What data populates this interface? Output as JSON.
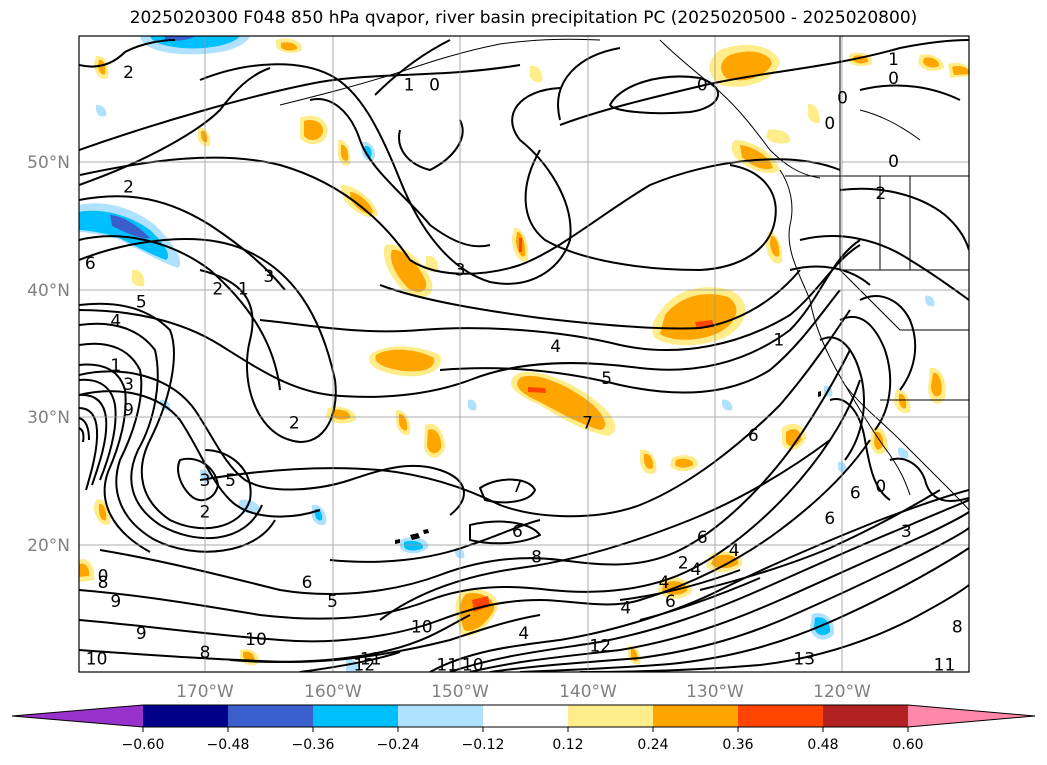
{
  "title": "2025020300 F048 850 hPa qvapor, river basin precipitation PC (2025020500 - 2025020800)",
  "lat_labels": [
    "50°N",
    "40°N",
    "30°N",
    "20°N"
  ],
  "lon_labels": [
    "170°W",
    "160°W",
    "150°W",
    "140°W",
    "130°W",
    "120°W"
  ],
  "colorbar": {
    "colors": [
      "#9932CC",
      "#00008B",
      "#3A5FCD",
      "#00BFFF",
      "#B0E2FF",
      "#FFFFFF",
      "#FFEC8B",
      "#FFA500",
      "#FF4500",
      "#B22222",
      "#FF88AA"
    ],
    "tick_labels": [
      "−0.60",
      "−0.48",
      "−0.36",
      "−0.24",
      "−0.12",
      "0.12",
      "0.24",
      "0.36",
      "0.48",
      "0.60"
    ]
  },
  "contour_labels": [
    {
      "text": "2",
      "lon": -176,
      "lat": 57
    },
    {
      "text": "1",
      "lon": -154,
      "lat": 56
    },
    {
      "text": "0",
      "lon": -152,
      "lat": 56
    },
    {
      "text": "1",
      "lon": -116,
      "lat": 58
    },
    {
      "text": "0",
      "lon": -116,
      "lat": 56.5
    },
    {
      "text": "0",
      "lon": -131,
      "lat": 56
    },
    {
      "text": "0",
      "lon": -120,
      "lat": 55
    },
    {
      "text": "0",
      "lon": -121,
      "lat": 53
    },
    {
      "text": "0",
      "lon": -116,
      "lat": 50
    },
    {
      "text": "2",
      "lon": -117,
      "lat": 47.5
    },
    {
      "text": "2",
      "lon": -176,
      "lat": 48
    },
    {
      "text": "3",
      "lon": -165,
      "lat": 41
    },
    {
      "text": "1",
      "lon": -167,
      "lat": 40
    },
    {
      "text": "2",
      "lon": -169,
      "lat": 40
    },
    {
      "text": "3",
      "lon": -150,
      "lat": 41.5
    },
    {
      "text": "6",
      "lon": -179,
      "lat": 42
    },
    {
      "text": "5",
      "lon": -175,
      "lat": 39
    },
    {
      "text": "4",
      "lon": -177,
      "lat": 37.5
    },
    {
      "text": "4",
      "lon": -142.5,
      "lat": 35.5
    },
    {
      "text": "5",
      "lon": -138.5,
      "lat": 33
    },
    {
      "text": "7",
      "lon": -140,
      "lat": 29.5
    },
    {
      "text": "1",
      "lon": -125,
      "lat": 36
    },
    {
      "text": "1",
      "lon": -177,
      "lat": 34
    },
    {
      "text": "3",
      "lon": -176,
      "lat": 32.5
    },
    {
      "text": "9",
      "lon": -176,
      "lat": 30.5
    },
    {
      "text": "2",
      "lon": -163,
      "lat": 29.5
    },
    {
      "text": "6",
      "lon": -127,
      "lat": 28.5
    },
    {
      "text": "5",
      "lon": -168,
      "lat": 25
    },
    {
      "text": "3",
      "lon": -170,
      "lat": 25
    },
    {
      "text": "2",
      "lon": -170,
      "lat": 22.5
    },
    {
      "text": "7",
      "lon": -145.5,
      "lat": 24.5
    },
    {
      "text": "6",
      "lon": -145.5,
      "lat": 21
    },
    {
      "text": "6",
      "lon": -121,
      "lat": 22
    },
    {
      "text": "6",
      "lon": -119,
      "lat": 24
    },
    {
      "text": "0",
      "lon": -117,
      "lat": 24.5
    },
    {
      "text": "3",
      "lon": -115,
      "lat": 21
    },
    {
      "text": "6",
      "lon": -131,
      "lat": 20.5
    },
    {
      "text": "8",
      "lon": -144,
      "lat": 19
    },
    {
      "text": "4",
      "lon": -128.5,
      "lat": 19.5
    },
    {
      "text": "2",
      "lon": -132.5,
      "lat": 18.5
    },
    {
      "text": "4",
      "lon": -131.5,
      "lat": 18
    },
    {
      "text": "6",
      "lon": -162,
      "lat": 17
    },
    {
      "text": "5",
      "lon": -160,
      "lat": 15.5
    },
    {
      "text": "4",
      "lon": -137,
      "lat": 15
    },
    {
      "text": "4",
      "lon": -134,
      "lat": 17
    },
    {
      "text": "6",
      "lon": -133.5,
      "lat": 15.5
    },
    {
      "text": "10",
      "lon": -153,
      "lat": 13.5
    },
    {
      "text": "4",
      "lon": -145,
      "lat": 13
    },
    {
      "text": "12",
      "lon": -139,
      "lat": 12
    },
    {
      "text": "10",
      "lon": -166,
      "lat": 12.5
    },
    {
      "text": "9",
      "lon": -175,
      "lat": 13
    },
    {
      "text": "8",
      "lon": -170,
      "lat": 11.5
    },
    {
      "text": "11",
      "lon": -157,
      "lat": 11
    },
    {
      "text": "12",
      "lon": -157.5,
      "lat": 10.5
    },
    {
      "text": "11",
      "lon": -151,
      "lat": 10.5
    },
    {
      "text": "10",
      "lon": -149,
      "lat": 10.5
    },
    {
      "text": "13",
      "lon": -123,
      "lat": 11
    },
    {
      "text": "11",
      "lon": -112,
      "lat": 10.5
    },
    {
      "text": "10",
      "lon": -178.5,
      "lat": 11
    },
    {
      "text": "9",
      "lon": -177,
      "lat": 15.5
    },
    {
      "text": "8",
      "lon": -178,
      "lat": 17
    },
    {
      "text": "0",
      "lon": -178,
      "lat": 17.5
    },
    {
      "text": "8",
      "lon": -111,
      "lat": 13.5
    }
  ]
}
